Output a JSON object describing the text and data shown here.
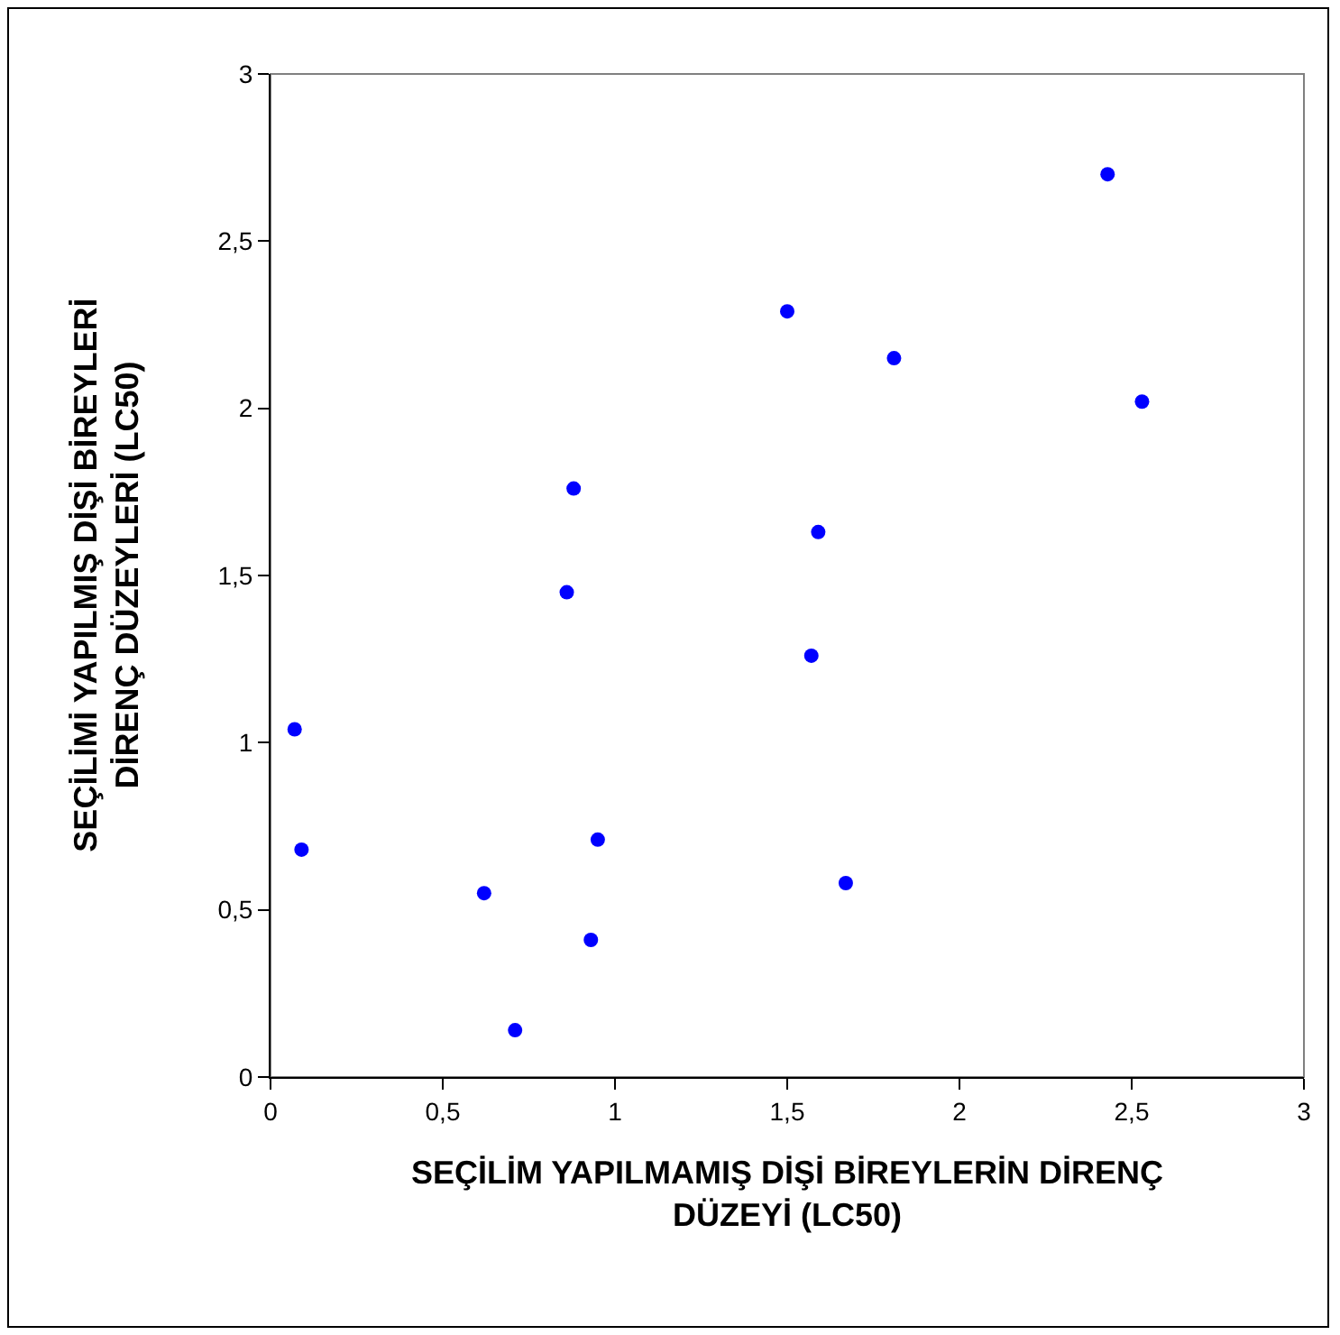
{
  "chart_data": {
    "type": "scatter",
    "xlabel": "SEÇİLİM YAPILMAMIŞ DİŞİ BİREYLERİN DİRENÇ DÜZEYİ (LC50)",
    "ylabel": "SEÇİLİMİ YAPILMIŞ DİŞİ BİREYLERİ DİRENÇ DÜZEYLERİ (LC50)",
    "series": [
      {
        "color": "#0000ff",
        "x": [
          2.43,
          1.5,
          1.81,
          2.53,
          0.88,
          1.59,
          0.86,
          1.57,
          0.07,
          0.09,
          0.95,
          1.67,
          0.62,
          0.93,
          0.71
        ],
        "values": [
          2.7,
          2.29,
          2.15,
          2.02,
          1.76,
          1.63,
          1.45,
          1.26,
          1.04,
          0.68,
          0.71,
          0.58,
          0.55,
          0.41,
          0.14
        ]
      }
    ],
    "xlim": [
      0,
      3
    ],
    "xticks": [
      0,
      {
        "value": 0.5,
        "label": "0,5"
      },
      1,
      {
        "value": 1.5,
        "label": "1,5"
      },
      2,
      {
        "value": 2.5,
        "label": "2,5"
      },
      3
    ],
    "ylim": [
      0,
      3
    ],
    "yticks": [
      0,
      {
        "value": 0.5,
        "label": "0,5"
      },
      1,
      {
        "value": 1.5,
        "label": "1,5"
      },
      2,
      {
        "value": 2.5,
        "label": "2,5"
      },
      3
    ],
    "marker": "circle"
  }
}
